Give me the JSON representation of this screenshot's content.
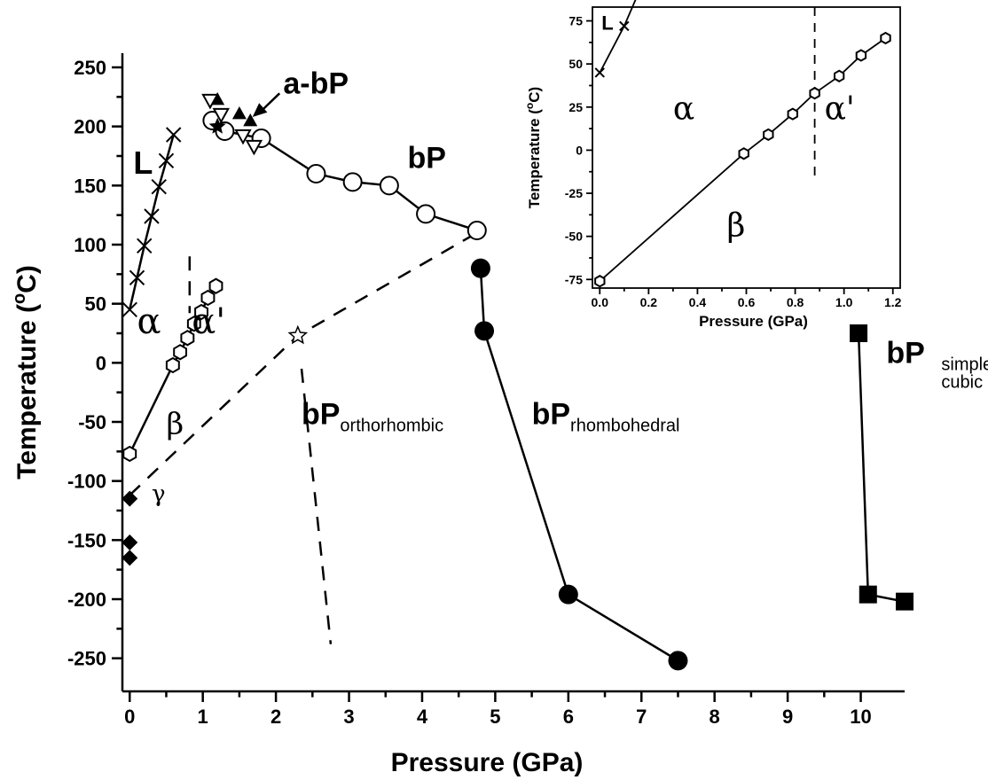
{
  "chart_data": [
    {
      "type": "scatter",
      "xlabel": "Pressure (GPa)",
      "ylabel_main": "Temperature (",
      "ylabel_sup": "o",
      "ylabel_end": "C)",
      "xlim": [
        -0.1,
        10.6
      ],
      "ylim": [
        -278,
        262
      ],
      "xticks": [
        0,
        1,
        2,
        3,
        4,
        5,
        6,
        7,
        8,
        9,
        10
      ],
      "yticks": [
        250,
        200,
        150,
        100,
        50,
        0,
        -50,
        -100,
        -150,
        -200,
        -250
      ],
      "series": [
        {
          "marker": "cross",
          "line": "solid",
          "points": [
            [
              0,
              45
            ],
            [
              0.1,
              72
            ],
            [
              0.2,
              99
            ],
            [
              0.3,
              124
            ],
            [
              0.4,
              149
            ],
            [
              0.5,
              171
            ],
            [
              0.6,
              193
            ]
          ]
        },
        {
          "marker": "hexagon",
          "line": "solid",
          "points": [
            [
              0,
              -77
            ],
            [
              0.59,
              -2
            ],
            [
              0.69,
              9
            ],
            [
              0.79,
              21
            ],
            [
              0.88,
              33
            ],
            [
              0.98,
              43
            ],
            [
              1.07,
              55
            ],
            [
              1.18,
              65
            ]
          ]
        },
        {
          "marker": "circle-open",
          "line": "solid",
          "points": [
            [
              1.13,
              205
            ],
            [
              1.3,
              196
            ],
            [
              1.8,
              190
            ],
            [
              2.55,
              160
            ],
            [
              3.05,
              153
            ],
            [
              3.55,
              150
            ],
            [
              4.05,
              126
            ],
            [
              4.75,
              112
            ]
          ]
        },
        {
          "marker": "triangle-up-filled",
          "line": "none",
          "points": [
            [
              1.2,
              223
            ],
            [
              1.5,
              211
            ],
            [
              1.65,
              205
            ]
          ]
        },
        {
          "marker": "triangle-down-open",
          "line": "none",
          "points": [
            [
              1.1,
              222
            ],
            [
              1.25,
              210
            ],
            [
              1.55,
              192
            ],
            [
              1.7,
              183
            ]
          ]
        },
        {
          "marker": "star-filled",
          "line": "none",
          "points": [
            [
              1.2,
              200
            ]
          ]
        },
        {
          "marker": "star-open",
          "line": "none",
          "points": [
            [
              2.3,
              23
            ]
          ]
        },
        {
          "marker": "circle-filled",
          "line": "solid",
          "points": [
            [
              4.8,
              80
            ],
            [
              4.85,
              27
            ],
            [
              6.0,
              -196
            ],
            [
              7.5,
              -252
            ]
          ]
        },
        {
          "marker": "square-filled",
          "line": "solid",
          "points": [
            [
              9.97,
              25
            ],
            [
              10.1,
              -196
            ],
            [
              10.6,
              -202
            ]
          ]
        },
        {
          "marker": "diamond-filled",
          "line": "none",
          "points": [
            [
              0,
              -115
            ],
            [
              0,
              -152
            ],
            [
              0,
              -165
            ]
          ]
        }
      ],
      "dashed_lines": [
        [
          [
            0.82,
            90
          ],
          [
            0.82,
            42
          ]
        ],
        [
          [
            0,
            -112
          ],
          [
            2.3,
            23
          ],
          [
            4.75,
            110
          ]
        ],
        [
          [
            2.35,
            -5
          ],
          [
            2.75,
            -238
          ]
        ]
      ],
      "annotations": [
        {
          "text": "L",
          "style": "bold"
        },
        {
          "text": "a-bP",
          "style": "bold"
        },
        {
          "text": "bP",
          "style": "bold"
        },
        {
          "text": "α",
          "style": "greek"
        },
        {
          "text": "α'",
          "style": "greek"
        },
        {
          "text": "β",
          "style": "greek"
        },
        {
          "text": "γ",
          "style": "greek"
        },
        {
          "text": "bP",
          "sub": "orthorhombic"
        },
        {
          "text": "bP",
          "sub": "rhombohedral"
        },
        {
          "text": "bP",
          "sub1": "simple",
          "sub2": "cubic"
        }
      ]
    },
    {
      "type": "scatter",
      "xlabel": "Pressure (GPa)",
      "ylabel_main": "Temperature (",
      "ylabel_sup": "o",
      "ylabel_end": "C)",
      "xlim": [
        -0.03,
        1.23
      ],
      "ylim": [
        -80,
        83
      ],
      "xticks": [
        0.0,
        0.2,
        0.4,
        0.6,
        0.8,
        1.0,
        1.2
      ],
      "xtick_labels": [
        "0.0",
        "0.2",
        "0.4",
        "0.6",
        "0.8",
        "1.0",
        "1.2"
      ],
      "yticks": [
        75,
        50,
        25,
        0,
        -25,
        -50,
        -75
      ],
      "series": [
        {
          "marker": "cross",
          "line": "solid",
          "points": [
            [
              0,
              45
            ],
            [
              0.1,
              72
            ]
          ]
        },
        {
          "marker": "hexagon",
          "line": "solid",
          "points": [
            [
              0,
              -76
            ],
            [
              0.59,
              -2
            ],
            [
              0.69,
              9
            ],
            [
              0.79,
              21
            ],
            [
              0.88,
              33
            ],
            [
              0.98,
              43
            ],
            [
              1.07,
              55
            ],
            [
              1.17,
              65
            ]
          ]
        }
      ],
      "dashed_lines": [
        [
          [
            0.88,
            83
          ],
          [
            0.88,
            -15
          ]
        ]
      ],
      "annotations": [
        {
          "text": "L",
          "style": "bold"
        },
        {
          "text": "α",
          "style": "greek"
        },
        {
          "text": "α'",
          "style": "greek"
        },
        {
          "text": "β",
          "style": "greek"
        }
      ]
    }
  ]
}
